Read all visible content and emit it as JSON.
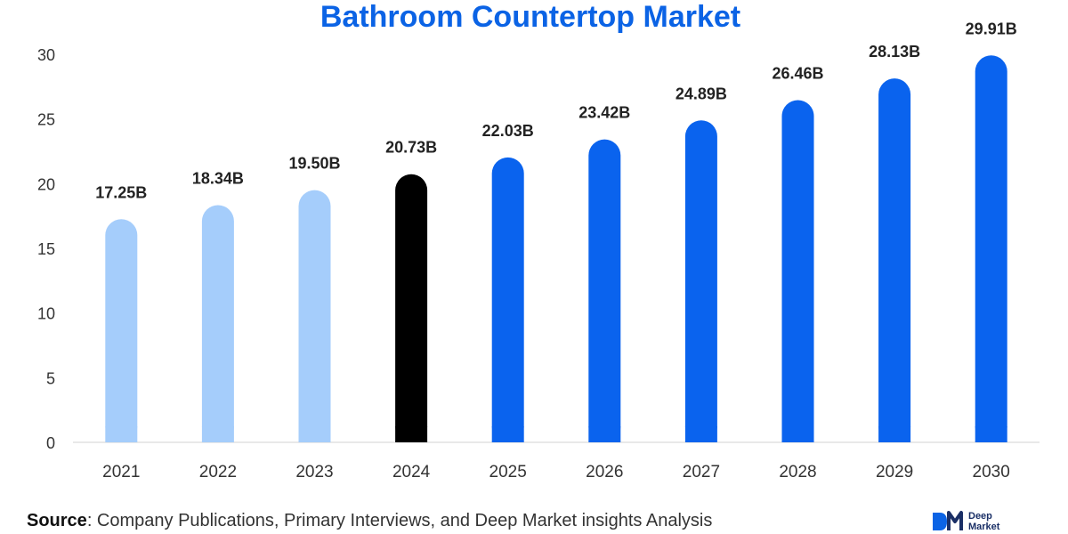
{
  "chart_data": {
    "type": "bar",
    "title": "Bathroom Countertop Market",
    "categories": [
      "2021",
      "2022",
      "2023",
      "2024",
      "2025",
      "2026",
      "2027",
      "2028",
      "2029",
      "2030"
    ],
    "values": [
      17.25,
      18.34,
      19.5,
      20.73,
      22.03,
      23.42,
      24.89,
      26.46,
      28.13,
      29.91
    ],
    "data_labels": [
      "17.25B",
      "18.34B",
      "19.50B",
      "20.73B",
      "22.03B",
      "23.42B",
      "24.89B",
      "26.46B",
      "28.13B",
      "29.91B"
    ],
    "bar_colors": [
      "#a5cdfb",
      "#a5cdfb",
      "#a5cdfb",
      "#000000",
      "#0a63ee",
      "#0a63ee",
      "#0a63ee",
      "#0a63ee",
      "#0a63ee",
      "#0a63ee"
    ],
    "ylim": [
      0,
      30
    ],
    "yticks": [
      0,
      5,
      10,
      15,
      20,
      25,
      30
    ],
    "grid": false,
    "xlabel": "",
    "ylabel": ""
  },
  "source": {
    "label": "Source",
    "text": ": Company Publications, Primary Interviews, and Deep Market insights Analysis"
  },
  "brand": {
    "name": "Deep\nMarket",
    "accent": "#0b63e5",
    "dark": "#1a2f66"
  },
  "colors": {
    "title": "#0b63e5",
    "axis": "#d0d0d0",
    "tick_text": "#333333",
    "label_text": "#222222"
  }
}
